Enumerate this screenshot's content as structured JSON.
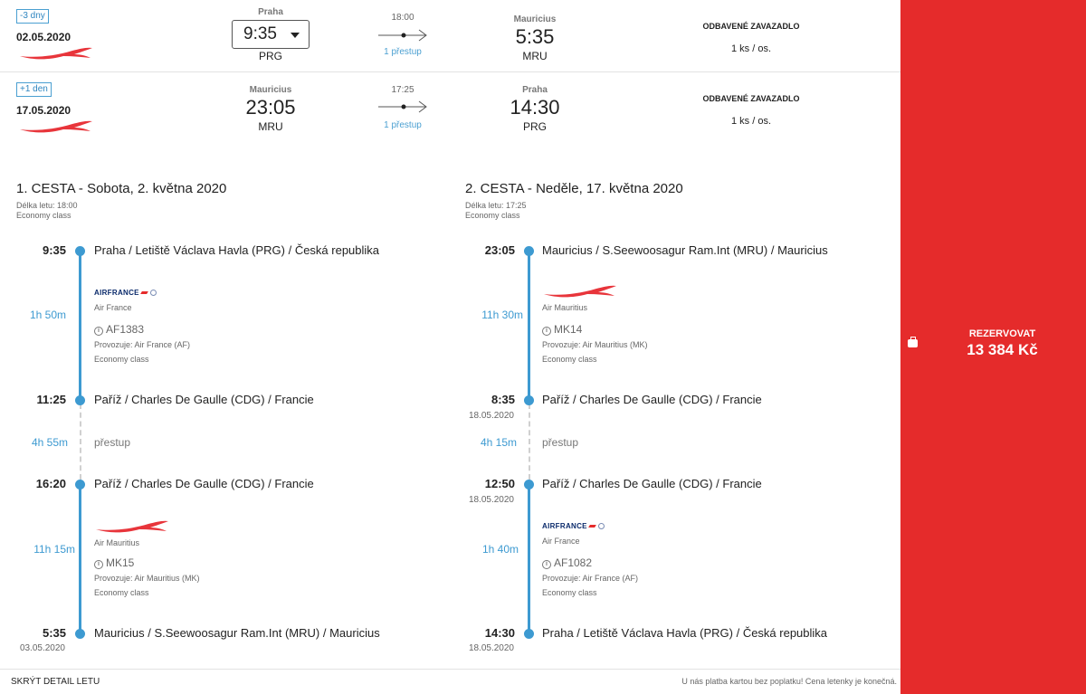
{
  "summary": [
    {
      "badge": "-3 dny",
      "date": "02.05.2020",
      "from_city": "Praha",
      "from_time": "9:35",
      "from_code": "PRG",
      "duration": "18:00",
      "stops": "1 přestup",
      "to_city": "Mauricius",
      "to_time": "5:35",
      "to_code": "MRU",
      "baggage_title": "ODBAVENÉ ZAVAZADLO",
      "baggage_value": "1 ks / os."
    },
    {
      "badge": "+1 den",
      "date": "17.05.2020",
      "from_city": "Mauricius",
      "from_time": "23:05",
      "from_code": "MRU",
      "duration": "17:25",
      "stops": "1 přestup",
      "to_city": "Praha",
      "to_time": "14:30",
      "to_code": "PRG",
      "baggage_title": "ODBAVENÉ ZAVAZADLO",
      "baggage_value": "1 ks / os."
    }
  ],
  "legs": [
    {
      "title": "1. CESTA - Sobota, 2. května 2020",
      "length": "Délka letu: 18:00",
      "class": "Economy class",
      "stops": [
        {
          "time": "9:35",
          "date": "",
          "place": "Praha / Letiště Václava Havla (PRG) / Česká republika"
        },
        {
          "time": "11:25",
          "date": "",
          "place": "Paříž / Charles De Gaulle (CDG) / Francie"
        },
        {
          "time": "16:20",
          "date": "",
          "place": "Paříž / Charles De Gaulle (CDG) / Francie"
        },
        {
          "time": "5:35",
          "date": "03.05.2020",
          "place": "Mauricius / S.Seewoosagur Ram.Int (MRU) / Mauricius"
        }
      ],
      "segments": [
        {
          "duration": "1h 50m",
          "logo_text": "AIRFRANCE",
          "airline": "Air France",
          "flight": "AF1383",
          "operator": "Provozuje: Air France (AF)",
          "class": "Economy class"
        },
        {
          "duration": "11h 15m",
          "logo_text": "",
          "airline": "Air Mauritius",
          "flight": "MK15",
          "operator": "Provozuje: Air Mauritius (MK)",
          "class": "Economy class"
        }
      ],
      "transfer": {
        "duration": "4h 55m",
        "label": "přestup"
      }
    },
    {
      "title": "2. CESTA - Neděle, 17. května 2020",
      "length": "Délka letu: 17:25",
      "class": "Economy class",
      "stops": [
        {
          "time": "23:05",
          "date": "",
          "place": "Mauricius / S.Seewoosagur Ram.Int (MRU) / Mauricius"
        },
        {
          "time": "8:35",
          "date": "18.05.2020",
          "place": "Paříž / Charles De Gaulle (CDG) / Francie"
        },
        {
          "time": "12:50",
          "date": "18.05.2020",
          "place": "Paříž / Charles De Gaulle (CDG) / Francie"
        },
        {
          "time": "14:30",
          "date": "18.05.2020",
          "place": "Praha / Letiště Václava Havla (PRG) / Česká republika"
        }
      ],
      "segments": [
        {
          "duration": "11h 30m",
          "logo_text": "",
          "airline": "Air Mauritius",
          "flight": "MK14",
          "operator": "Provozuje: Air Mauritius (MK)",
          "class": "Economy class"
        },
        {
          "duration": "1h 40m",
          "logo_text": "AIRFRANCE",
          "airline": "Air France",
          "flight": "AF1082",
          "operator": "Provozuje: Air France (AF)",
          "class": "Economy class"
        }
      ],
      "transfer": {
        "duration": "4h 15m",
        "label": "přestup"
      }
    }
  ],
  "footer": {
    "hide_detail": "SKRÝT DETAIL LETU",
    "note": "U nás platba kartou bez poplatku! Cena letenky je konečná."
  },
  "booking": {
    "label": "REZERVOVAT",
    "price": "13 384 Kč"
  },
  "colors": {
    "accent_red": "#e52b2b",
    "timeline_blue": "#3d9ad1"
  },
  "icons": [
    "air-mauritius-logo",
    "air-france-logo",
    "arrow-right-icon",
    "info-icon",
    "suitcase-icon",
    "chevron-down-icon"
  ]
}
